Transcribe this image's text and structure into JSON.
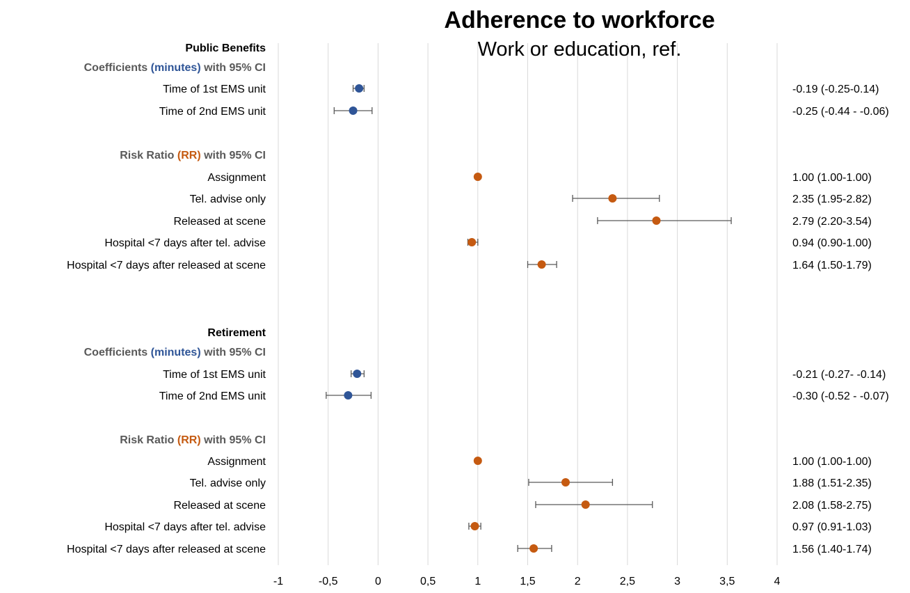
{
  "chart_data": {
    "type": "scatter",
    "subtype": "forest-plot",
    "title": "Adherence to workforce",
    "subtitle": "Work or education, ref.",
    "xlim": [
      -1,
      4
    ],
    "x_ticks": [
      "-1",
      "-0,5",
      "0",
      "0,5",
      "1",
      "1,5",
      "2",
      "2,5",
      "3",
      "3,5",
      "4"
    ],
    "grid": "vertical",
    "colors": {
      "coefficient": "#2f5597",
      "rr": "#c55a11",
      "error_bar": "#595959",
      "grid": "#d9d9d9",
      "header_text": "#595959"
    },
    "sections": [
      {
        "title": "Public Benefits",
        "groups": [
          {
            "kind": "coefficient",
            "header_parts": [
              "Coefficients ",
              "(minutes)",
              " with 95% CI"
            ],
            "rows": [
              {
                "label": "Time of 1st EMS unit",
                "est": -0.19,
                "lo": -0.25,
                "hi": -0.14,
                "text": "-0.19 (-0.25-0.14)"
              },
              {
                "label": "Time of 2nd EMS unit",
                "est": -0.25,
                "lo": -0.44,
                "hi": -0.06,
                "text": "-0.25 (-0.44 - -0.06)"
              }
            ]
          },
          {
            "kind": "rr",
            "header_parts": [
              "Risk Ratio ",
              "(RR)",
              " with 95% CI"
            ],
            "rows": [
              {
                "label": "Assignment",
                "est": 1.0,
                "lo": 1.0,
                "hi": 1.0,
                "text": "1.00 (1.00-1.00)"
              },
              {
                "label": "Tel. advise only",
                "est": 2.35,
                "lo": 1.95,
                "hi": 2.82,
                "text": "2.35 (1.95-2.82)"
              },
              {
                "label": "Released at scene",
                "est": 2.79,
                "lo": 2.2,
                "hi": 3.54,
                "text": "2.79 (2.20-3.54)"
              },
              {
                "label": "Hospital  <7 days after tel. advise",
                "est": 0.94,
                "lo": 0.9,
                "hi": 1.0,
                "text": "0.94 (0.90-1.00)"
              },
              {
                "label": "Hospital  <7 days after released at scene",
                "est": 1.64,
                "lo": 1.5,
                "hi": 1.79,
                "text": "1.64 (1.50-1.79)"
              }
            ]
          }
        ]
      },
      {
        "title": "Retirement",
        "groups": [
          {
            "kind": "coefficient",
            "header_parts": [
              "Coefficients ",
              "(minutes)",
              " with 95% CI"
            ],
            "rows": [
              {
                "label": "Time of 1st EMS unit",
                "est": -0.21,
                "lo": -0.27,
                "hi": -0.14,
                "text": "-0.21 (-0.27- -0.14)"
              },
              {
                "label": "Time of 2nd EMS unit",
                "est": -0.3,
                "lo": -0.52,
                "hi": -0.07,
                "text": "-0.30 (-0.52 - -0.07)"
              }
            ]
          },
          {
            "kind": "rr",
            "header_parts": [
              "Risk Ratio ",
              "(RR)",
              " with 95% CI"
            ],
            "rows": [
              {
                "label": "Assignment",
                "est": 1.0,
                "lo": 1.0,
                "hi": 1.0,
                "text": "1.00 (1.00-1.00)"
              },
              {
                "label": "Tel. advise only",
                "est": 1.88,
                "lo": 1.51,
                "hi": 2.35,
                "text": "1.88 (1.51-2.35)"
              },
              {
                "label": "Released at scene",
                "est": 2.08,
                "lo": 1.58,
                "hi": 2.75,
                "text": "2.08 (1.58-2.75)"
              },
              {
                "label": "Hospital  <7 days after tel. advise",
                "est": 0.97,
                "lo": 0.91,
                "hi": 1.03,
                "text": "0.97 (0.91-1.03)"
              },
              {
                "label": "Hospital  <7 days after released at scene",
                "est": 1.56,
                "lo": 1.4,
                "hi": 1.74,
                "text": "1.56 (1.40-1.74)"
              }
            ]
          }
        ]
      }
    ]
  }
}
